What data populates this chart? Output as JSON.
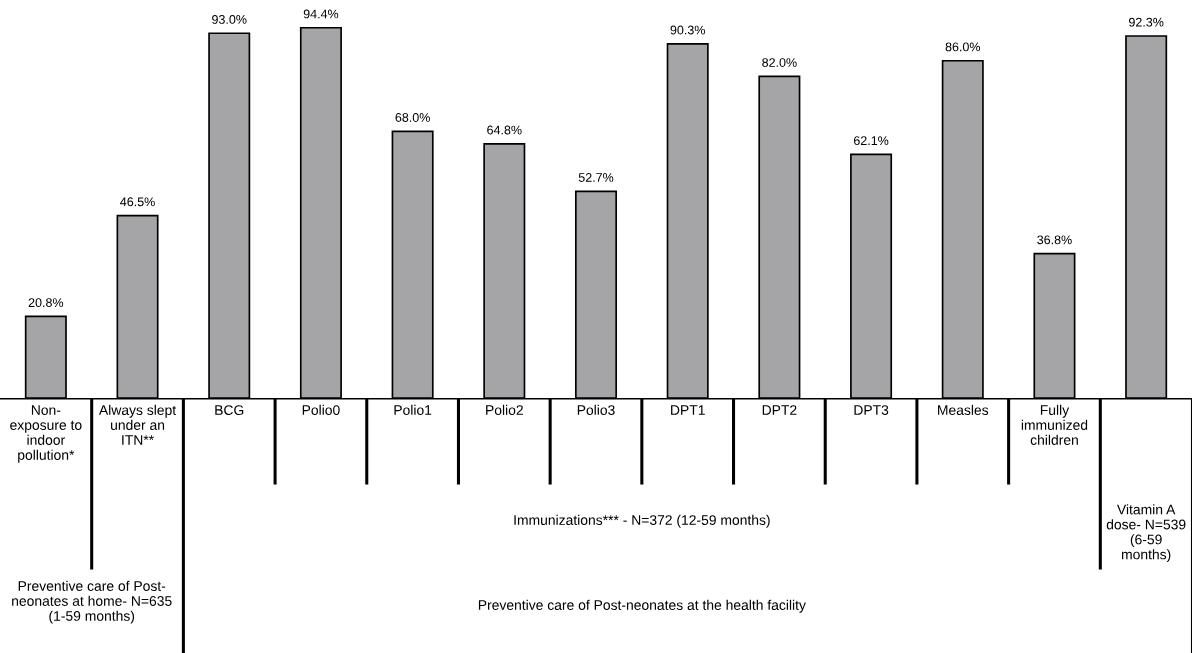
{
  "chart_data": {
    "type": "bar",
    "categories": [
      "Non-\nexposure to\nindoor\npollution*",
      "Always slept\nunder an\nITN**",
      "BCG",
      "Polio0",
      "Polio1",
      "Polio2",
      "Polio3",
      "DPT1",
      "DPT2",
      "DPT3",
      "Measles",
      "Fully\nimmunized\nchildren",
      null
    ],
    "values": [
      20.8,
      46.5,
      93.0,
      94.4,
      68.0,
      64.8,
      52.7,
      90.3,
      82.0,
      62.1,
      86.0,
      36.8,
      92.3
    ],
    "value_labels": [
      "20.8%",
      "46.5%",
      "93.0%",
      "94.4%",
      "68.0%",
      "64.8%",
      "52.7%",
      "90.3%",
      "82.0%",
      "62.1%",
      "86.0%",
      "36.8%",
      "92.3%"
    ],
    "color": "#a5a5a8",
    "annotations": [
      "Immunizations*** - N=372 (12-59 months)",
      "Vitamin A\ndose- N=539\n(6-59\nmonths)",
      "Preventive care of Post-\nneonates at home- N=635\n(1-59 months)",
      "Preventive care of Post-neonates at the health facility"
    ]
  }
}
